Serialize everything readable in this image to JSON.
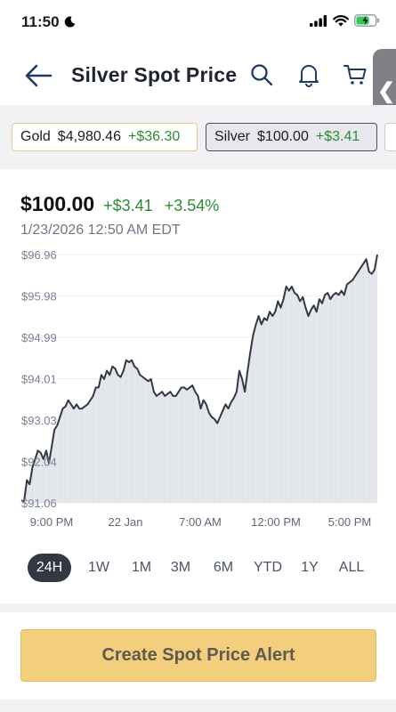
{
  "status_bar": {
    "time": "11:50"
  },
  "header": {
    "title": "Silver Spot Price"
  },
  "side_tab": {
    "glyph": "❮"
  },
  "tickers": [
    {
      "name": "Gold",
      "price": "$4,980.46",
      "change": "+$36.30"
    },
    {
      "name": "Silver",
      "price": "$100.00",
      "change": "+$3.41"
    }
  ],
  "quote": {
    "price": "$100.00",
    "change": "+$3.41",
    "change_pct": "+3.54%",
    "timestamp": "1/23/2026 12:50 AM EDT"
  },
  "ranges": [
    {
      "label": "24H",
      "active": true
    },
    {
      "label": "1W"
    },
    {
      "label": "1M"
    },
    {
      "label": "3M"
    },
    {
      "label": "6M"
    },
    {
      "label": "YTD"
    },
    {
      "label": "1Y"
    },
    {
      "label": "ALL"
    }
  ],
  "alert_button": {
    "label": "Create Spot Price Alert"
  },
  "colors": {
    "positive": "#2e8b35",
    "accent": "#f3ce7c",
    "line": "#333942",
    "area": "#e4e7ec"
  },
  "chart_data": {
    "type": "area",
    "y_tick_labels": [
      "$96.96",
      "$95.98",
      "$94.99",
      "$94.01",
      "$93.03",
      "$92.04",
      "$91.06"
    ],
    "y_ticks": [
      96.96,
      95.98,
      94.99,
      94.01,
      93.03,
      92.04,
      91.06
    ],
    "x_tick_labels": [
      "9:00 PM",
      "22 Jan",
      "7:00 AM",
      "12:00 PM",
      "5:00 PM"
    ],
    "ylim": [
      91.06,
      96.96
    ],
    "grid": true,
    "values": [
      91.12,
      91.1,
      91.6,
      91.5,
      91.9,
      92.1,
      92.3,
      92.25,
      92.1,
      92.3,
      92.0,
      92.4,
      92.8,
      92.9,
      93.1,
      93.3,
      93.35,
      93.5,
      93.4,
      93.3,
      93.4,
      93.3,
      93.3,
      93.35,
      93.4,
      93.5,
      93.6,
      93.8,
      93.8,
      94.1,
      94.0,
      94.2,
      94.1,
      94.3,
      94.25,
      94.1,
      94.05,
      94.2,
      94.45,
      94.4,
      94.45,
      94.3,
      94.25,
      94.1,
      94.05,
      94.0,
      93.95,
      94.0,
      93.7,
      93.6,
      93.65,
      93.7,
      93.6,
      93.65,
      93.7,
      93.6,
      93.6,
      93.7,
      93.8,
      93.8,
      93.75,
      93.8,
      93.85,
      93.7,
      93.6,
      93.3,
      93.5,
      93.4,
      93.2,
      93.1,
      93.05,
      92.95,
      93.1,
      93.25,
      93.4,
      93.3,
      93.45,
      93.55,
      93.7,
      94.2,
      94.0,
      93.7,
      94.2,
      94.65,
      95.05,
      95.3,
      95.5,
      95.3,
      95.45,
      95.4,
      95.6,
      95.5,
      95.6,
      95.85,
      95.7,
      95.9,
      96.2,
      96.1,
      96.2,
      96.05,
      96.0,
      95.85,
      95.95,
      95.7,
      95.5,
      95.65,
      95.75,
      95.6,
      95.9,
      95.8,
      96.0,
      96.05,
      95.9,
      96.0,
      96.05,
      96.0,
      96.1,
      96.0,
      96.25,
      96.3,
      96.35,
      96.45,
      96.55,
      96.65,
      96.75,
      96.85,
      96.55,
      96.5,
      96.6,
      96.96
    ]
  }
}
